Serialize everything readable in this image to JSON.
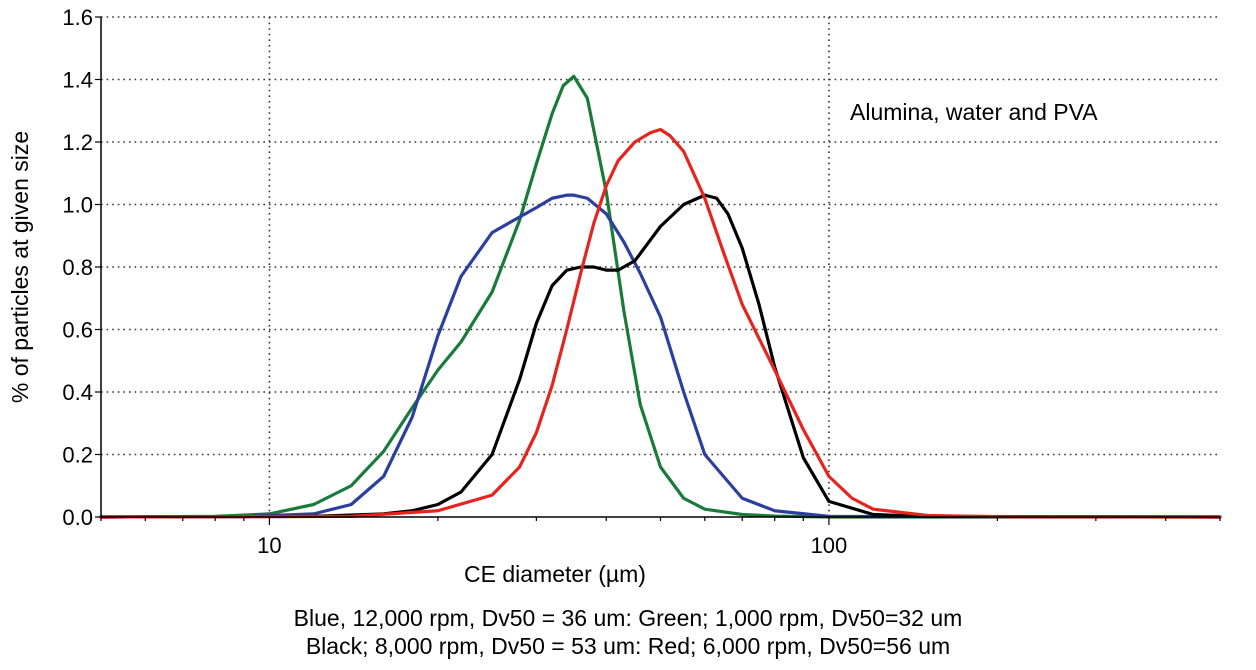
{
  "chart_data": {
    "type": "line",
    "title": "",
    "annotation": "Alumina, water and PVA",
    "xlabel": "CE diameter (µm)",
    "ylabel": "% of particles at given size",
    "xscale": "log",
    "xlim": [
      5,
      500
    ],
    "ylim": [
      0,
      1.6
    ],
    "xticks": [
      10,
      100
    ],
    "xtick_labels": [
      "10",
      "100"
    ],
    "yticks": [
      0.0,
      0.2,
      0.4,
      0.6,
      0.8,
      1.0,
      1.2,
      1.4,
      1.6
    ],
    "ytick_labels": [
      "0.0",
      "0.2",
      "0.4",
      "0.6",
      "0.8",
      "1.0",
      "1.2",
      "1.4",
      "1.6"
    ],
    "grid": true,
    "caption": [
      "Blue, 12,000 rpm, Dv50 = 36 um: Green; 1,000 rpm, Dv50=32 um",
      "Black; 8,000 rpm, Dv50 = 53 um: Red; 6,000 rpm, Dv50=56 um"
    ],
    "series": [
      {
        "color": "#1a7a3a",
        "x": [
          5,
          8,
          10,
          12,
          14,
          16,
          18,
          20,
          22,
          25,
          28,
          30,
          32,
          33.5,
          35,
          37,
          40,
          43,
          46,
          50,
          55,
          60,
          70,
          80,
          100,
          500
        ],
        "y": [
          0,
          0.002,
          0.01,
          0.04,
          0.1,
          0.21,
          0.35,
          0.47,
          0.56,
          0.72,
          0.95,
          1.13,
          1.29,
          1.38,
          1.41,
          1.34,
          1.04,
          0.66,
          0.36,
          0.16,
          0.06,
          0.025,
          0.008,
          0.003,
          0,
          0
        ]
      },
      {
        "color": "#2b3f9e",
        "x": [
          5,
          9,
          12,
          14,
          16,
          18,
          20,
          22,
          25,
          28,
          30,
          32,
          34,
          35,
          37,
          40,
          43,
          46,
          50,
          55,
          60,
          70,
          80,
          100,
          500
        ],
        "y": [
          0,
          0.001,
          0.01,
          0.04,
          0.13,
          0.32,
          0.58,
          0.77,
          0.91,
          0.96,
          0.99,
          1.02,
          1.03,
          1.03,
          1.02,
          0.97,
          0.88,
          0.78,
          0.64,
          0.4,
          0.2,
          0.06,
          0.02,
          0.002,
          0
        ]
      },
      {
        "color": "#000000",
        "x": [
          5,
          12,
          16,
          18,
          20,
          22,
          25,
          28,
          30,
          32,
          34,
          36,
          38,
          40,
          42,
          45,
          50,
          55,
          60,
          63,
          66,
          70,
          75,
          80,
          90,
          100,
          120,
          150,
          500
        ],
        "y": [
          0,
          0.002,
          0.01,
          0.02,
          0.04,
          0.08,
          0.2,
          0.44,
          0.62,
          0.74,
          0.79,
          0.8,
          0.8,
          0.79,
          0.79,
          0.82,
          0.93,
          1.0,
          1.03,
          1.02,
          0.97,
          0.86,
          0.68,
          0.48,
          0.19,
          0.05,
          0.008,
          0.002,
          0
        ]
      },
      {
        "color": "#e8231e",
        "x": [
          5,
          14,
          20,
          25,
          28,
          30,
          32,
          34,
          36,
          38,
          40,
          42,
          45,
          48,
          50,
          52,
          55,
          60,
          65,
          70,
          80,
          90,
          100,
          110,
          120,
          150,
          200,
          500
        ],
        "y": [
          0,
          0.002,
          0.02,
          0.07,
          0.16,
          0.27,
          0.42,
          0.6,
          0.78,
          0.94,
          1.06,
          1.14,
          1.2,
          1.23,
          1.24,
          1.22,
          1.17,
          1.02,
          0.84,
          0.68,
          0.47,
          0.28,
          0.13,
          0.06,
          0.025,
          0.005,
          0.001,
          0
        ]
      }
    ]
  }
}
